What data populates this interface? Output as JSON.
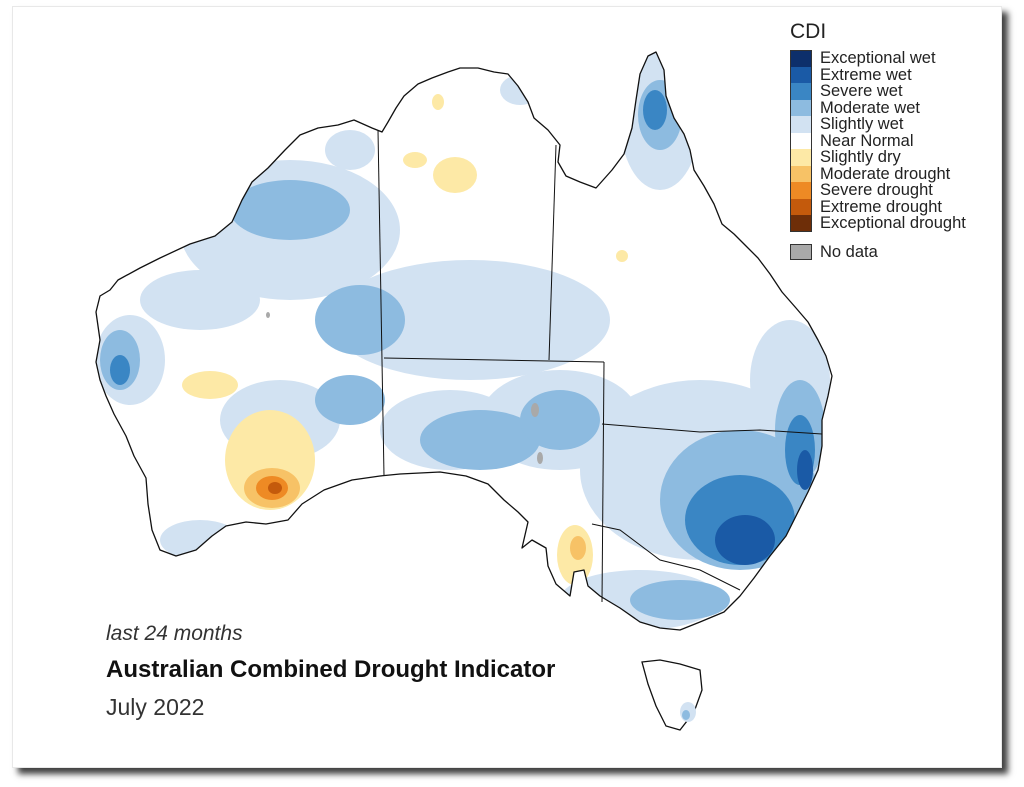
{
  "legend": {
    "title": "CDI",
    "items": [
      {
        "label": "Exceptional wet",
        "color": "#0d2f6b"
      },
      {
        "label": "Extreme wet",
        "color": "#1a5aa6"
      },
      {
        "label": "Severe wet",
        "color": "#3a86c4"
      },
      {
        "label": "Moderate wet",
        "color": "#8dbbe0"
      },
      {
        "label": "Slightly wet",
        "color": "#d2e2f2"
      },
      {
        "label": "Near Normal",
        "color": "#ffffff"
      },
      {
        "label": "Slightly dry",
        "color": "#fde9a6"
      },
      {
        "label": "Moderate drought",
        "color": "#f7c266"
      },
      {
        "label": "Severe drought",
        "color": "#ee8a24"
      },
      {
        "label": "Extreme drought",
        "color": "#c45a0c"
      },
      {
        "label": "Exceptional drought",
        "color": "#6e2e08"
      }
    ],
    "no_data": {
      "label": "No data",
      "color": "#a9a9a9"
    }
  },
  "caption": {
    "period": "last 24 months",
    "title": "Australian Combined Drought Indicator",
    "date": "July 2022"
  }
}
